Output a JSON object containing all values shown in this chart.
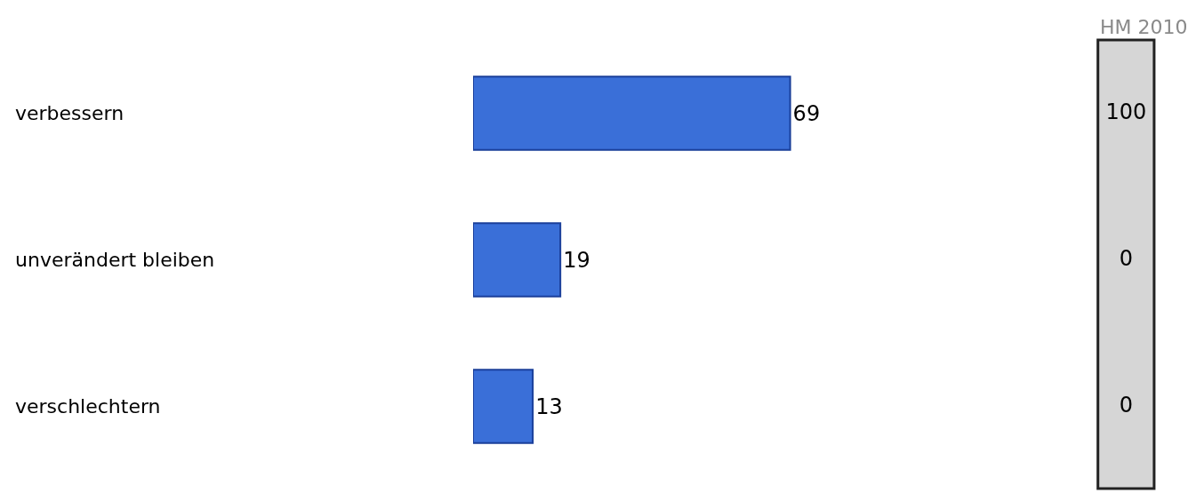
{
  "chart_data": [
    {
      "type": "bar",
      "orientation": "horizontal",
      "categories": [
        "verbessern",
        "unverändert bleiben",
        "verschlechtern"
      ],
      "values": [
        69,
        19,
        13
      ],
      "color": "#3a6fd8",
      "data_labels": true
    },
    {
      "type": "other",
      "title": "HM 2010",
      "categories": [
        null,
        null,
        null
      ],
      "values": [
        100,
        0,
        0
      ],
      "data_labels": true
    }
  ]
}
